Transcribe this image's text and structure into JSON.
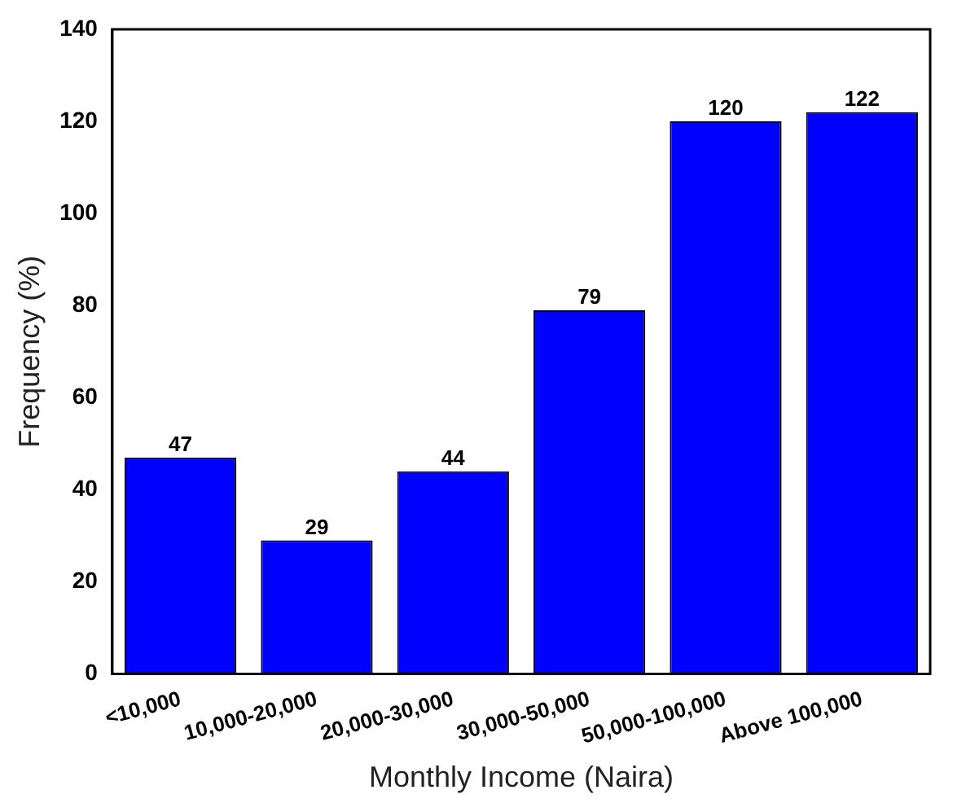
{
  "chart_data": {
    "type": "bar",
    "xlabel": "Monthly Income (Naira)",
    "ylabel": "Frequency (%)",
    "categories": [
      "<10,000",
      "10,000-20,000",
      "20,000-30,000",
      "30,000-50,000",
      "50,000-100,000",
      "Above 100,000"
    ],
    "values": [
      47,
      29,
      44,
      79,
      120,
      122
    ],
    "color": "#0000ff",
    "ylim": [
      0,
      140
    ],
    "yticks": [
      0,
      20,
      40,
      60,
      80,
      100,
      120,
      140
    ],
    "grid": false,
    "data_labels": true
  }
}
